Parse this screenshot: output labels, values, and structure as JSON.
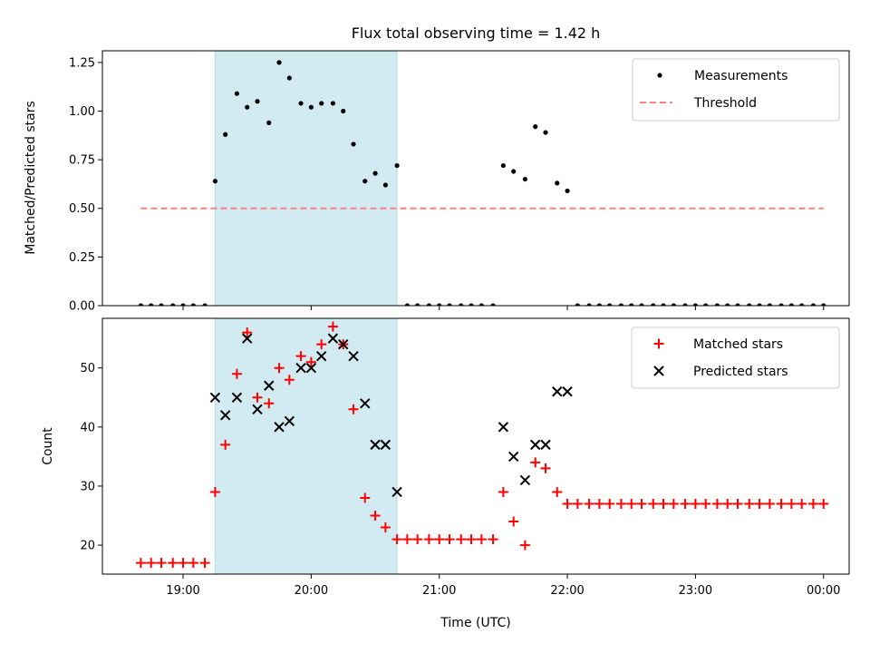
{
  "chart_data": {
    "title": "Flux total observing time = 1.42 h",
    "xlabel": "Time (UTC)",
    "x_tick_labels": [
      "19:00",
      "20:00",
      "21:00",
      "22:00",
      "23:00",
      "00:00"
    ],
    "x_ticks_hours": [
      19,
      20,
      21,
      22,
      23,
      24
    ],
    "xlim_hours": [
      18.37,
      24.2
    ],
    "highlight_span_hours": [
      19.25,
      20.67
    ],
    "colors": {
      "highlight": "#d2ebf2",
      "matched": "#ff0000",
      "predicted": "#000000",
      "measurement": "#000000",
      "threshold": "#ff8080"
    },
    "panels": [
      {
        "type": "scatter",
        "ylabel": "Matched/Predicted stars",
        "ylim": [
          0,
          1.31
        ],
        "y_ticks": [
          0,
          0.25,
          0.5,
          0.75,
          1.0,
          1.25
        ],
        "y_tick_labels": [
          "0.00",
          "0.25",
          "0.50",
          "0.75",
          "1.00",
          "1.25"
        ],
        "legend_position": "top-right",
        "legend": [
          {
            "label": "Measurements",
            "marker": "dot"
          },
          {
            "label": "Threshold",
            "marker": "dashed-line"
          }
        ],
        "threshold": {
          "y": 0.5,
          "x_range": [
            18.67,
            24.0
          ]
        },
        "series": [
          {
            "name": "Measurements",
            "marker": "dot",
            "x": [
              18.67,
              18.75,
              18.83,
              18.92,
              19.0,
              19.08,
              19.17,
              19.25,
              19.33,
              19.42,
              19.5,
              19.58,
              19.67,
              19.75,
              19.83,
              19.92,
              20.0,
              20.08,
              20.17,
              20.25,
              20.33,
              20.42,
              20.5,
              20.58,
              20.67,
              20.75,
              20.83,
              20.92,
              21.0,
              21.08,
              21.17,
              21.25,
              21.33,
              21.42,
              21.5,
              21.58,
              21.67,
              21.75,
              21.83,
              21.92,
              22.0,
              22.08,
              22.17,
              22.25,
              22.33,
              22.42,
              22.5,
              22.58,
              22.67,
              22.75,
              22.83,
              22.92,
              23.0,
              23.08,
              23.17,
              23.25,
              23.33,
              23.42,
              23.5,
              23.58,
              23.67,
              23.75,
              23.83,
              23.92,
              24.0
            ],
            "y": [
              0,
              0,
              0,
              0,
              0,
              0,
              0,
              0.64,
              0.88,
              1.09,
              1.02,
              1.05,
              0.94,
              1.25,
              1.17,
              1.04,
              1.02,
              1.04,
              1.04,
              1.0,
              0.83,
              0.64,
              0.68,
              0.62,
              0.72,
              0,
              0,
              0,
              0,
              0,
              0,
              0,
              0,
              0,
              0.72,
              0.69,
              0.65,
              0.92,
              0.89,
              0.63,
              0.59,
              0,
              0,
              0,
              0,
              0,
              0,
              0,
              0,
              0,
              0,
              0,
              0,
              0,
              0,
              0,
              0,
              0,
              0,
              0,
              0,
              0,
              0,
              0,
              0
            ]
          }
        ]
      },
      {
        "type": "scatter",
        "ylabel": "Count",
        "ylim": [
          15.1,
          58.4
        ],
        "y_ticks": [
          20,
          30,
          40,
          50
        ],
        "y_tick_labels": [
          "20",
          "30",
          "40",
          "50"
        ],
        "legend_position": "top-right",
        "legend": [
          {
            "label": "Matched stars",
            "marker": "plus"
          },
          {
            "label": "Predicted stars",
            "marker": "x"
          }
        ],
        "series": [
          {
            "name": "Matched stars",
            "marker": "plus",
            "x": [
              18.67,
              18.75,
              18.83,
              18.92,
              19.0,
              19.08,
              19.17,
              19.25,
              19.33,
              19.42,
              19.5,
              19.58,
              19.67,
              19.75,
              19.83,
              19.92,
              20.0,
              20.08,
              20.17,
              20.25,
              20.33,
              20.42,
              20.5,
              20.58,
              20.67,
              20.75,
              20.83,
              20.92,
              21.0,
              21.08,
              21.17,
              21.25,
              21.33,
              21.42,
              21.5,
              21.58,
              21.67,
              21.75,
              21.83,
              21.92,
              22.0,
              22.08,
              22.17,
              22.25,
              22.33,
              22.42,
              22.5,
              22.58,
              22.67,
              22.75,
              22.83,
              22.92,
              23.0,
              23.08,
              23.17,
              23.25,
              23.33,
              23.42,
              23.5,
              23.58,
              23.67,
              23.75,
              23.83,
              23.92,
              24.0
            ],
            "y": [
              17,
              17,
              17,
              17,
              17,
              17,
              17,
              29,
              37,
              49,
              56,
              45,
              44,
              50,
              48,
              52,
              51,
              54,
              57,
              54,
              43,
              28,
              25,
              23,
              21,
              21,
              21,
              21,
              21,
              21,
              21,
              21,
              21,
              21,
              29,
              24,
              20,
              34,
              33,
              29,
              27,
              27,
              27,
              27,
              27,
              27,
              27,
              27,
              27,
              27,
              27,
              27,
              27,
              27,
              27,
              27,
              27,
              27,
              27,
              27,
              27,
              27,
              27,
              27,
              27
            ]
          },
          {
            "name": "Predicted stars",
            "marker": "x",
            "x": [
              19.25,
              19.33,
              19.42,
              19.5,
              19.58,
              19.67,
              19.75,
              19.83,
              19.92,
              20.0,
              20.08,
              20.17,
              20.25,
              20.33,
              20.42,
              20.5,
              20.58,
              20.67,
              21.5,
              21.58,
              21.67,
              21.75,
              21.83,
              21.92,
              22.0
            ],
            "y": [
              45,
              42,
              45,
              55,
              43,
              47,
              40,
              41,
              50,
              50,
              52,
              55,
              54,
              52,
              44,
              37,
              37,
              29,
              40,
              35,
              31,
              37,
              37,
              46,
              46
            ]
          }
        ]
      }
    ]
  }
}
